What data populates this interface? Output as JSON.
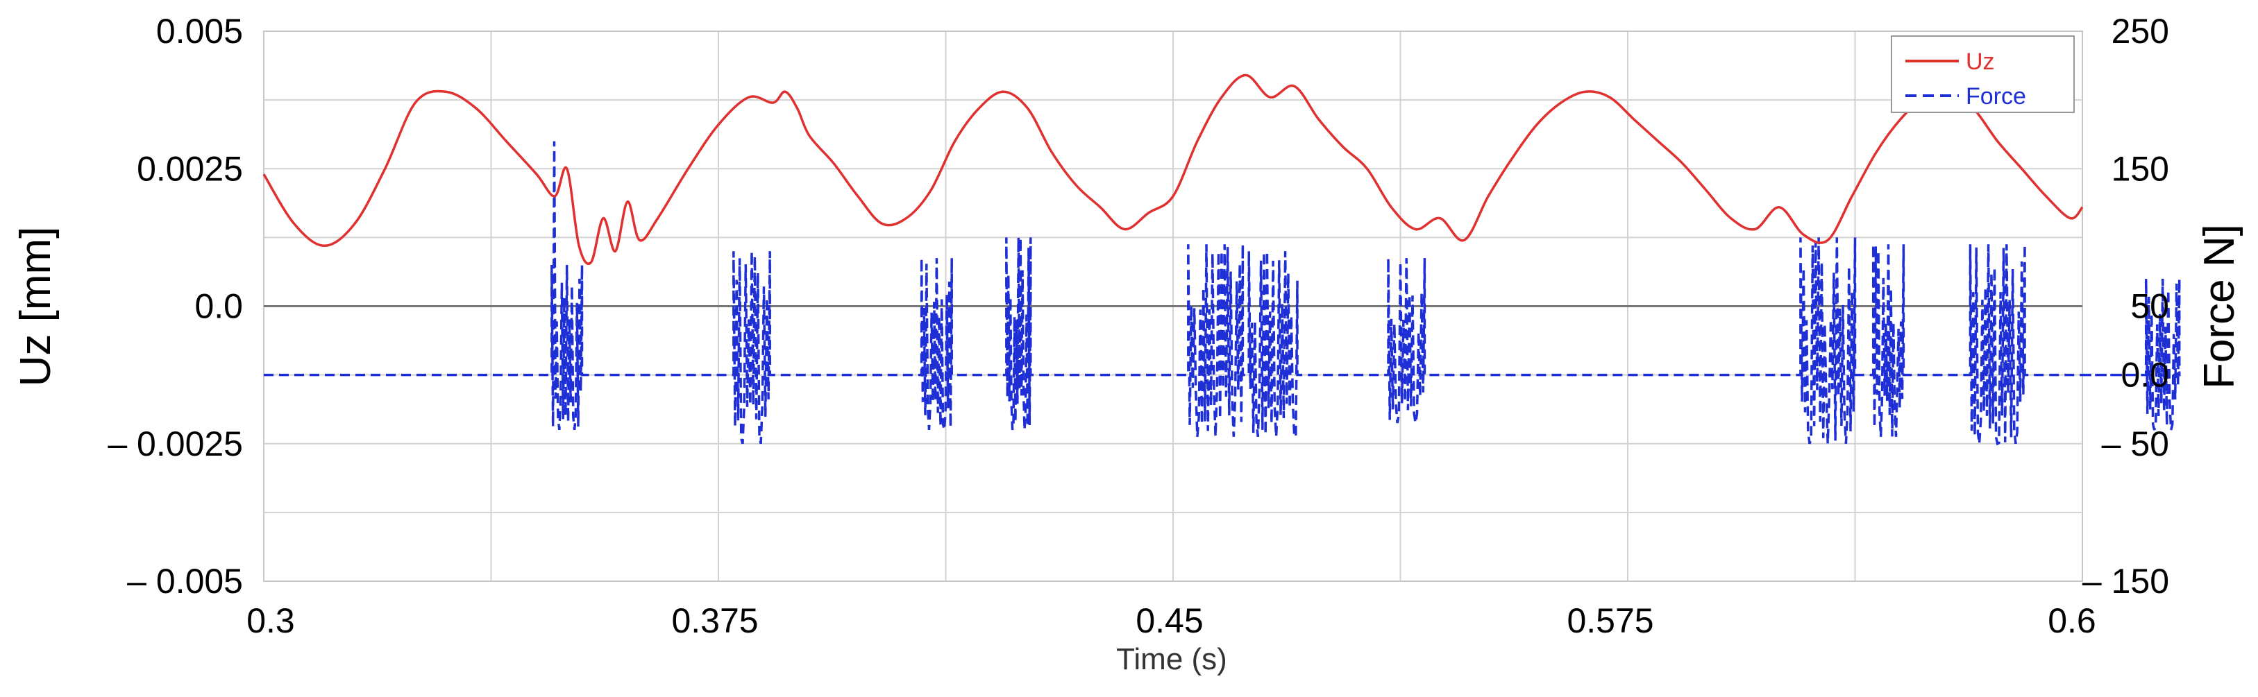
{
  "chart_data": {
    "type": "line",
    "xlabel": "Time (s)",
    "ylabel_left": "Uz [mm]",
    "ylabel_right": "Force N]",
    "xlim": [
      0.3,
      0.6
    ],
    "ylim_left": [
      -0.005,
      0.005
    ],
    "ylim_right": [
      -150,
      250
    ],
    "x_ticks": [
      {
        "value": 0.3,
        "label": "0.3"
      },
      {
        "value": 0.375,
        "label": "0.375"
      },
      {
        "value": 0.45,
        "label": "0.45"
      },
      {
        "value": 0.525,
        "label": ""
      },
      {
        "value": 0.575,
        "label": "0.575"
      },
      {
        "value": 0.6,
        "label": "0.6"
      }
    ],
    "y_left_ticks": [
      {
        "value": 0.005,
        "label": "0.005"
      },
      {
        "value": 0.0025,
        "label": "0.0025"
      },
      {
        "value": 0.0,
        "label": "0.0"
      },
      {
        "value": -0.0025,
        "label": "– 0.0025"
      },
      {
        "value": -0.005,
        "label": "– 0.005"
      }
    ],
    "y_right_ticks": [
      {
        "value": 250,
        "label": "250"
      },
      {
        "value": 150,
        "label": "150"
      },
      {
        "value": 50,
        "label": "50"
      },
      {
        "value": 0,
        "label": "0.0"
      },
      {
        "value": -50,
        "label": "– 50"
      },
      {
        "value": -150,
        "label": "– 150"
      }
    ],
    "grid": true,
    "legend_position": "top-right",
    "series": [
      {
        "name": "Uz",
        "axis": "left",
        "color": "#e03131",
        "style": "solid",
        "x": [
          0.3,
          0.305,
          0.31,
          0.315,
          0.32,
          0.325,
          0.33,
          0.335,
          0.34,
          0.345,
          0.348,
          0.35,
          0.352,
          0.354,
          0.356,
          0.358,
          0.36,
          0.362,
          0.365,
          0.37,
          0.375,
          0.38,
          0.384,
          0.386,
          0.388,
          0.39,
          0.394,
          0.398,
          0.402,
          0.406,
          0.41,
          0.414,
          0.418,
          0.422,
          0.426,
          0.43,
          0.434,
          0.438,
          0.442,
          0.446,
          0.45,
          0.454,
          0.458,
          0.462,
          0.466,
          0.47,
          0.474,
          0.478,
          0.482,
          0.486,
          0.49,
          0.494,
          0.498,
          0.502,
          0.506,
          0.51,
          0.514,
          0.518,
          0.522,
          0.526,
          0.53,
          0.534,
          0.538,
          0.542,
          0.546,
          0.55,
          0.554,
          0.558,
          0.562,
          0.566,
          0.57,
          0.574,
          0.578,
          0.582,
          0.586,
          0.59,
          0.594,
          0.598,
          0.6
        ],
        "values": [
          0.0024,
          0.0015,
          0.0011,
          0.0015,
          0.0025,
          0.0037,
          0.0039,
          0.0036,
          0.003,
          0.0024,
          0.002,
          0.0025,
          0.0011,
          0.0008,
          0.0016,
          0.001,
          0.0019,
          0.0012,
          0.0016,
          0.0025,
          0.0033,
          0.0038,
          0.0037,
          0.0039,
          0.0036,
          0.0031,
          0.0026,
          0.002,
          0.0015,
          0.0016,
          0.0021,
          0.003,
          0.0036,
          0.0039,
          0.0036,
          0.0028,
          0.0022,
          0.0018,
          0.0014,
          0.0017,
          0.002,
          0.003,
          0.0038,
          0.0042,
          0.0038,
          0.004,
          0.0034,
          0.0029,
          0.0025,
          0.0018,
          0.0014,
          0.0016,
          0.0012,
          0.002,
          0.0027,
          0.0033,
          0.0037,
          0.0039,
          0.0038,
          0.0034,
          0.003,
          0.0026,
          0.0021,
          0.0016,
          0.0014,
          0.0018,
          0.0013,
          0.0012,
          0.002,
          0.0028,
          0.0034,
          0.0038,
          0.0039,
          0.0036,
          0.003,
          0.0025,
          0.002,
          0.0016,
          0.0018
        ]
      },
      {
        "name": "Force",
        "axis": "right",
        "color": "#1f2fd6",
        "style": "dashed",
        "baseline": 0,
        "bursts": [
          {
            "start": 0.3475,
            "end": 0.3525,
            "min": -40,
            "max": 80,
            "peak": 170
          },
          {
            "start": 0.3775,
            "end": 0.3835,
            "min": -50,
            "max": 90
          },
          {
            "start": 0.4085,
            "end": 0.4135,
            "min": -40,
            "max": 85
          },
          {
            "start": 0.4225,
            "end": 0.4265,
            "min": -40,
            "max": 100
          },
          {
            "start": 0.4525,
            "end": 0.4615,
            "min": -45,
            "max": 95
          },
          {
            "start": 0.4625,
            "end": 0.4705,
            "min": -45,
            "max": 90
          },
          {
            "start": 0.4855,
            "end": 0.4915,
            "min": -35,
            "max": 85
          },
          {
            "start": 0.5535,
            "end": 0.5625,
            "min": -50,
            "max": 100
          },
          {
            "start": 0.5655,
            "end": 0.5705,
            "min": -45,
            "max": 95
          },
          {
            "start": 0.5815,
            "end": 0.5905,
            "min": -50,
            "max": 95
          },
          {
            "start": 0.6105,
            "end": 0.616,
            "min": -40,
            "max": 70
          }
        ]
      }
    ]
  }
}
